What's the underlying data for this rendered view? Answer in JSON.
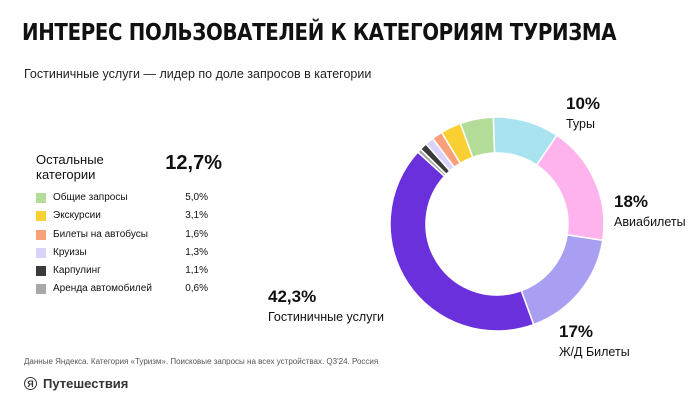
{
  "header": {
    "title": "ИНТЕРЕС ПОЛЬЗОВАТЕЛЕЙ К КАТЕГОРИЯМ ТУРИЗМА",
    "subtitle": "Гостиничные услуги — лидер по доле запросов в категории"
  },
  "others": {
    "label": "Остальные категории",
    "value": "12,7%"
  },
  "chart_data": {
    "type": "pie",
    "donut": true,
    "start_angle_deg": -2,
    "direction": "clockwise",
    "slices": [
      {
        "label": "Туры",
        "value": 10,
        "display": "10%",
        "color": "#a9e3f0"
      },
      {
        "label": "Авиабилеты",
        "value": 18,
        "display": "18%",
        "color": "#ffb3ec"
      },
      {
        "label": "Ж/Д Билеты",
        "value": 17,
        "display": "17%",
        "color": "#a99ff2"
      },
      {
        "label": "Гостиничные услуги",
        "value": 42.3,
        "display": "42,3%",
        "color": "#6a30dc"
      },
      {
        "label": "Аренда автомобилей",
        "value": 0.6,
        "display": "0,6%",
        "color": "#a8a8a8"
      },
      {
        "label": "Карпулинг",
        "value": 1.1,
        "display": "1,1%",
        "color": "#3a3a3a"
      },
      {
        "label": "Круизы",
        "value": 1.3,
        "display": "1,3%",
        "color": "#d9d2fb"
      },
      {
        "label": "Билеты на автобусы",
        "value": 1.6,
        "display": "1,6%",
        "color": "#f8a07a"
      },
      {
        "label": "Экскурсии",
        "value": 3.1,
        "display": "3,1%",
        "color": "#f9cf32"
      },
      {
        "label": "Общие запросы",
        "value": 5.0,
        "display": "5,0%",
        "color": "#b3dc98"
      }
    ]
  },
  "legend": [
    {
      "label": "Общие запросы",
      "value": "5,0%",
      "color": "#b3dc98"
    },
    {
      "label": "Экскурсии",
      "value": "3,1%",
      "color": "#f9cf32"
    },
    {
      "label": "Билеты на автобусы",
      "value": "1,6%",
      "color": "#f8a07a"
    },
    {
      "label": "Круизы",
      "value": "1,3%",
      "color": "#d9d2fb"
    },
    {
      "label": "Карпулинг",
      "value": "1,1%",
      "color": "#3a3a3a"
    },
    {
      "label": "Аренда автомобилей",
      "value": "0,6%",
      "color": "#a8a8a8"
    }
  ],
  "callouts": [
    {
      "pct": "10%",
      "name": "Туры"
    },
    {
      "pct": "18%",
      "name": "Авиабилеты"
    },
    {
      "pct": "17%",
      "name": "Ж/Д Билеты"
    },
    {
      "pct": "42,3%",
      "name": "Гостиничные услуги"
    }
  ],
  "footer": {
    "note": "Данные Яндекса. Категория «Туризм». Поисковые запросы на всех устройствах. Q3'24. Россия",
    "logo_letter": "Я",
    "brand": "Путешествия"
  }
}
